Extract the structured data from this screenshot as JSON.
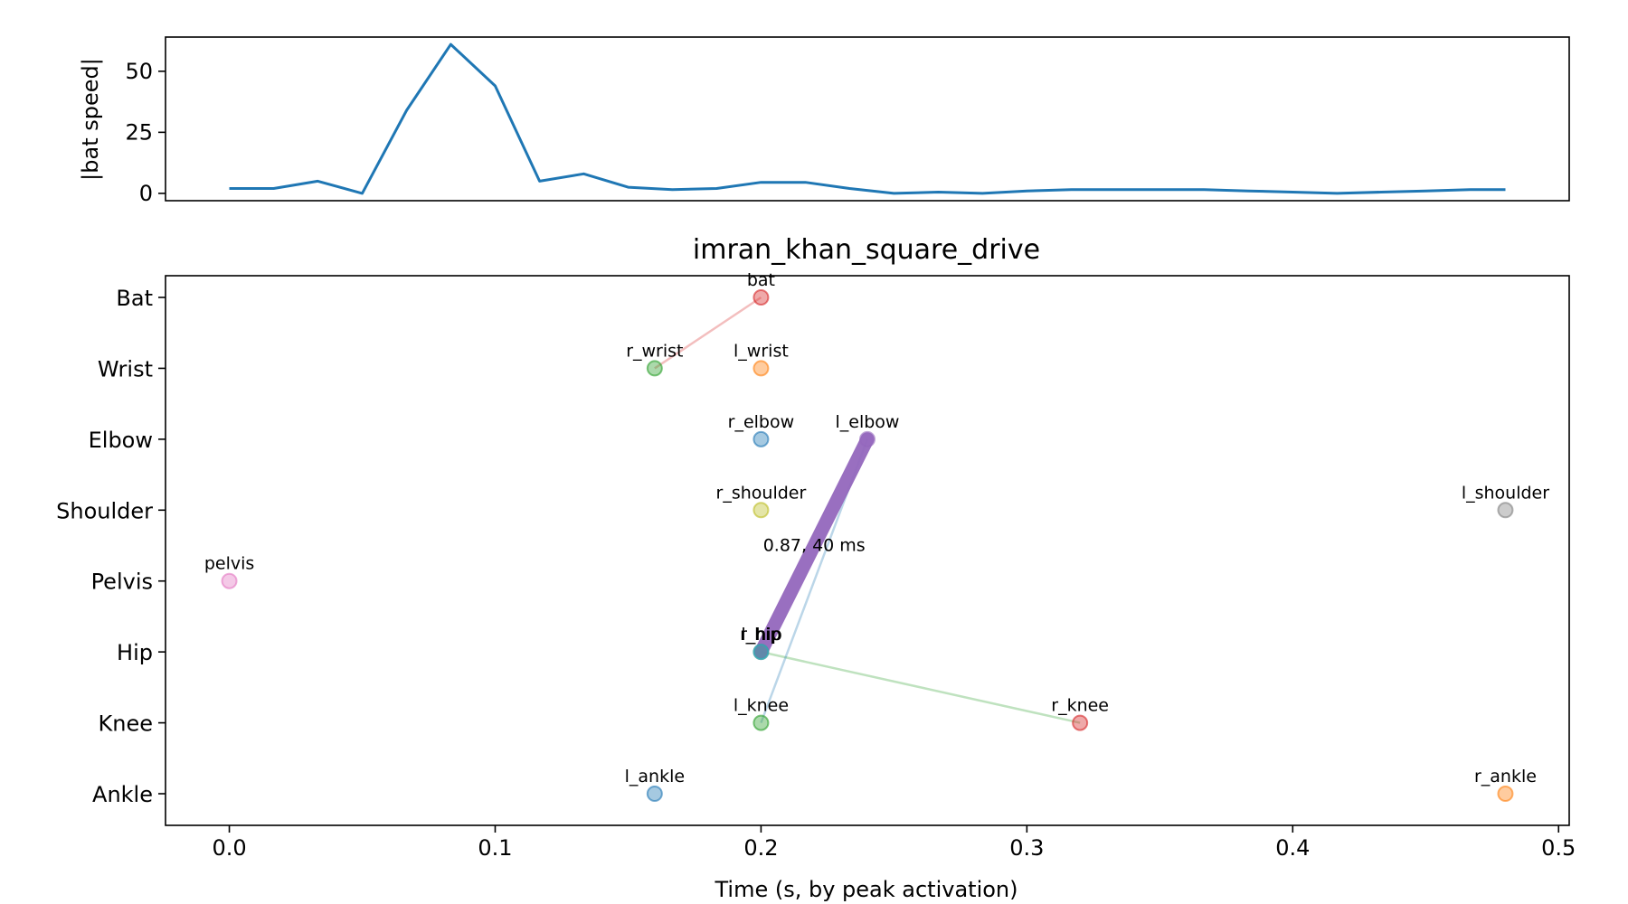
{
  "chart_data": [
    {
      "type": "line",
      "title": "",
      "xlabel": "",
      "ylabel": "|bat speed|",
      "xlim": [
        -0.024,
        0.504
      ],
      "ylim": [
        -3,
        64
      ],
      "yticks": [
        0,
        25,
        50
      ],
      "grid": false,
      "color": "#1f77b4",
      "series": [
        {
          "x": [
            0.0,
            0.0167,
            0.0333,
            0.05,
            0.0667,
            0.0833,
            0.1,
            0.1167,
            0.1333,
            0.15,
            0.1667,
            0.1833,
            0.2,
            0.2167,
            0.2333,
            0.25,
            0.2667,
            0.2833,
            0.3,
            0.3167,
            0.3333,
            0.35,
            0.3667,
            0.3833,
            0.4,
            0.4167,
            0.4333,
            0.45,
            0.4667,
            0.48
          ],
          "y": [
            2.0,
            2.0,
            5.0,
            0.0,
            34.0,
            61.0,
            44.0,
            5.0,
            8.0,
            2.5,
            1.5,
            2.0,
            4.5,
            4.5,
            2.0,
            0.0,
            0.5,
            0.0,
            1.0,
            1.5,
            1.5,
            1.5,
            1.5,
            1.0,
            0.5,
            0.0,
            0.5,
            1.0,
            1.5,
            1.5
          ]
        }
      ]
    },
    {
      "type": "scatter",
      "title": "imran_khan_square_drive",
      "xlabel": "Time (s, by peak activation)",
      "ylabel": "",
      "xlim": [
        -0.024,
        0.504
      ],
      "xticks": [
        "0.0",
        "0.1",
        "0.2",
        "0.3",
        "0.4",
        "0.5"
      ],
      "xtick_values": [
        0.0,
        0.1,
        0.2,
        0.3,
        0.4,
        0.5
      ],
      "categories": [
        "Bat",
        "Wrist",
        "Elbow",
        "Shoulder",
        "Pelvis",
        "Hip",
        "Knee",
        "Ankle"
      ],
      "grid": false,
      "points": [
        {
          "label": "bat",
          "x": 0.2,
          "y": "Bat",
          "color": "#d62728"
        },
        {
          "label": "r_wrist",
          "x": 0.16,
          "y": "Wrist",
          "color": "#2ca02c"
        },
        {
          "label": "l_wrist",
          "x": 0.2,
          "y": "Wrist",
          "color": "#ff7f0e"
        },
        {
          "label": "r_elbow",
          "x": 0.2,
          "y": "Elbow",
          "color": "#1f77b4"
        },
        {
          "label": "l_elbow",
          "x": 0.24,
          "y": "Elbow",
          "color": "#9467bd"
        },
        {
          "label": "r_shoulder",
          "x": 0.2,
          "y": "Shoulder",
          "color": "#bcbd22"
        },
        {
          "label": "l_shoulder",
          "x": 0.48,
          "y": "Shoulder",
          "color": "#7f7f7f"
        },
        {
          "label": "pelvis",
          "x": 0.0,
          "y": "Pelvis",
          "color": "#e377c2"
        },
        {
          "label": "r_hip",
          "x": 0.2,
          "y": "Hip",
          "color": "#8c564b"
        },
        {
          "label": "l_hip",
          "x": 0.2,
          "y": "Hip",
          "color": "#17becf"
        },
        {
          "label": "l_knee",
          "x": 0.2,
          "y": "Knee",
          "color": "#2ca02c"
        },
        {
          "label": "r_knee",
          "x": 0.32,
          "y": "Knee",
          "color": "#d62728"
        },
        {
          "label": "l_ankle",
          "x": 0.16,
          "y": "Ankle",
          "color": "#1f77b4"
        },
        {
          "label": "r_ankle",
          "x": 0.48,
          "y": "Ankle",
          "color": "#ff7f0e"
        }
      ],
      "links": [
        {
          "from_x": 0.16,
          "from_y": "Wrist",
          "to_x": 0.2,
          "to_y": "Bat",
          "color": "#d62728",
          "weight": "thin"
        },
        {
          "from_x": 0.2,
          "from_y": "Hip",
          "to_x": 0.32,
          "to_y": "Knee",
          "color": "#2ca02c",
          "weight": "thin"
        },
        {
          "from_x": 0.2,
          "from_y": "Knee",
          "to_x": 0.24,
          "to_y": "Elbow",
          "color": "#1f77b4",
          "weight": "thin"
        },
        {
          "from_x": 0.2,
          "from_y": "Hip",
          "to_x": 0.24,
          "to_y": "Elbow",
          "color": "#9467bd",
          "weight": "thick"
        }
      ],
      "annotations": [
        {
          "text": "0.87, 40 ms",
          "x": 0.22,
          "y": "Shoulder"
        }
      ]
    }
  ]
}
